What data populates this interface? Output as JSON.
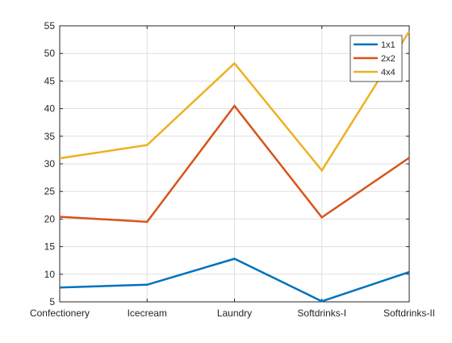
{
  "chart_data": {
    "type": "line",
    "title": "",
    "xlabel": "",
    "ylabel": "",
    "categories": [
      "Confectionery",
      "Icecream",
      "Laundry",
      "Softdrinks-I",
      "Softdrinks-II"
    ],
    "ylim": [
      5,
      55
    ],
    "yticks": [
      5,
      10,
      15,
      20,
      25,
      30,
      35,
      40,
      45,
      50,
      55
    ],
    "grid": true,
    "legend_position": "top-right",
    "series": [
      {
        "name": "1x1",
        "color": "#0072BD",
        "values": [
          7.6,
          8.1,
          12.8,
          5.1,
          10.4
        ]
      },
      {
        "name": "2x2",
        "color": "#D95319",
        "values": [
          20.4,
          19.5,
          40.5,
          20.3,
          31.1
        ]
      },
      {
        "name": "4x4",
        "color": "#EDB120",
        "values": [
          31.0,
          33.4,
          48.2,
          28.8,
          54.0
        ]
      }
    ]
  }
}
